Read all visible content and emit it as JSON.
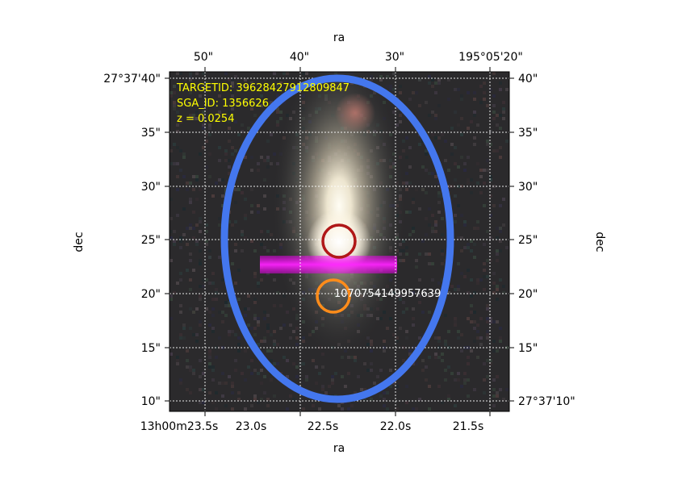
{
  "figure": {
    "top_axis_label": "ra",
    "bottom_axis_label": "ra",
    "left_axis_label": "dec",
    "right_axis_label": "dec",
    "top_ticks": [
      "50\"",
      "40\"",
      "30\"",
      "195°05'20\""
    ],
    "bottom_ticks": [
      "13h00m23.5s",
      "23.0s",
      "22.5s",
      "22.0s",
      "21.5s"
    ],
    "left_ticks": [
      "27°37'40\"",
      "35\"",
      "30\"",
      "25\"",
      "20\"",
      "15\"",
      "10\""
    ],
    "right_ticks": [
      "40\"",
      "35\"",
      "30\"",
      "25\"",
      "20\"",
      "15\"",
      "27°37'10\""
    ],
    "targetid": "TARGETID: 39628427912809847",
    "sga_id": "SGA_ID: 1356626",
    "redshift": "z = 0.0254",
    "marker_label": "1070754149957639",
    "colors": {
      "ellipse": "#4477ee",
      "target_circle": "#b01818",
      "secondary_circle": "#ff8c1a",
      "fiber_band": "#ee00ee",
      "annotation_text": "#ffff00",
      "marker_label_text": "#ffffff"
    },
    "grid": true
  }
}
